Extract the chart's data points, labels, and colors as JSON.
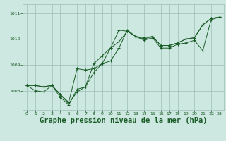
{
  "background_color": "#cde8e0",
  "grid_color": "#9dbfb5",
  "line_color": "#1a5c28",
  "xlabel": "Graphe pression niveau de la mer (hPa)",
  "xlabel_fontsize": 7.5,
  "ylim": [
    1007.25,
    1011.35
  ],
  "xlim": [
    -0.5,
    23.5
  ],
  "yticks": [
    1008,
    1009,
    1010,
    1011
  ],
  "xticks": [
    0,
    1,
    2,
    3,
    4,
    5,
    6,
    7,
    8,
    9,
    10,
    11,
    12,
    13,
    14,
    15,
    16,
    17,
    18,
    19,
    20,
    21,
    22,
    23
  ],
  "series1": [
    1008.2,
    1008.2,
    1008.15,
    1008.2,
    1007.85,
    1007.55,
    1008.85,
    1008.8,
    1008.85,
    1009.05,
    1009.65,
    1010.35,
    1010.3,
    1010.1,
    1010.05,
    1010.1,
    1009.75,
    1009.75,
    1009.85,
    1010.0,
    1010.05,
    1010.55,
    1010.8,
    1010.85
  ],
  "series2": [
    1008.2,
    1008.2,
    1008.15,
    1008.2,
    1007.85,
    1007.5,
    1007.95,
    1008.15,
    1009.05,
    1009.35,
    1009.65,
    1009.9,
    1010.3,
    1010.1,
    1010.0,
    1010.1,
    1009.75,
    1009.75,
    1009.85,
    1010.0,
    1010.05,
    1010.55,
    1010.8,
    1010.85
  ],
  "series3": [
    1008.2,
    1008.0,
    1007.95,
    1008.2,
    1007.75,
    1007.45,
    1008.05,
    1008.15,
    1008.7,
    1009.05,
    1009.15,
    1009.65,
    1010.35,
    1010.1,
    1009.95,
    1010.05,
    1009.65,
    1009.65,
    1009.8,
    1009.85,
    1009.95,
    1009.55,
    1010.75,
    1010.85
  ]
}
